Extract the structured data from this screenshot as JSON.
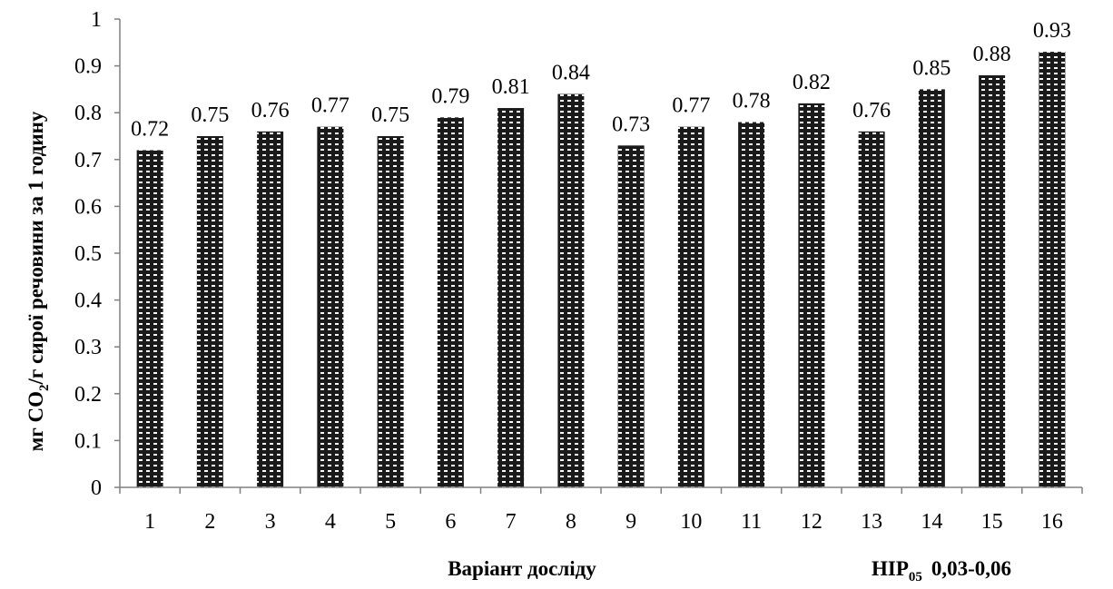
{
  "chart_data": {
    "type": "bar",
    "categories": [
      "1",
      "2",
      "3",
      "4",
      "5",
      "6",
      "7",
      "8",
      "9",
      "10",
      "11",
      "12",
      "13",
      "14",
      "15",
      "16"
    ],
    "values": [
      0.72,
      0.75,
      0.76,
      0.77,
      0.75,
      0.79,
      0.81,
      0.84,
      0.73,
      0.77,
      0.78,
      0.82,
      0.76,
      0.85,
      0.88,
      0.93
    ],
    "data_labels": [
      "0.72",
      "0.75",
      "0.76",
      "0.77",
      "0.75",
      "0.79",
      "0.81",
      "0.84",
      "0.73",
      "0.77",
      "0.78",
      "0.82",
      "0.76",
      "0.85",
      "0.88",
      "0.93"
    ],
    "ylim": [
      0,
      1
    ],
    "yticks": [
      "0",
      "0.1",
      "0.2",
      "0.3",
      "0.4",
      "0.5",
      "0.6",
      "0.7",
      "0.8",
      "0.9",
      "1"
    ],
    "xlabel": "Варіант досліду",
    "ylabel": {
      "part1": "мг CO",
      "subscript": "2",
      "part2": "/г сирої речовини за 1 годину"
    },
    "note": {
      "prefix": "НІР",
      "subscript": "05",
      "value": "0,03-0,06"
    },
    "bar_pattern": "dark-checkered",
    "grid": false,
    "legend": "none"
  }
}
